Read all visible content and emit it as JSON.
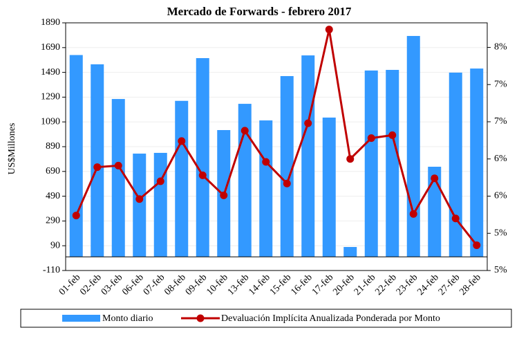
{
  "chart_data": {
    "type": "bar_line",
    "title": "Mercado de Forwards - febrero 2017",
    "y_label": "US$Millones",
    "categories": [
      "01-feb",
      "02-feb",
      "03-feb",
      "06-feb",
      "07-feb",
      "08-feb",
      "09-feb",
      "10-feb",
      "13-feb",
      "14-feb",
      "15-feb",
      "16-feb",
      "17-feb",
      "20-feb",
      "21-feb",
      "22-feb",
      "23-feb",
      "24-feb",
      "27-feb",
      "28-feb"
    ],
    "series": [
      {
        "name": "Monto diario",
        "type": "bar",
        "color": "#3399ff",
        "values": [
          1630,
          1555,
          1275,
          834,
          840,
          1260,
          1605,
          1024,
          1236,
          1102,
          1460,
          1627,
          1125,
          80,
          1505,
          1510,
          1784,
          728,
          1488,
          1521
        ]
      },
      {
        "name": "Devaluación Implícita Anualizada Ponderada por Monto",
        "type": "line",
        "axis": "y2",
        "color": "#c00000",
        "values": [
          5.24,
          5.89,
          5.91,
          5.46,
          5.7,
          6.24,
          5.78,
          5.51,
          6.38,
          5.96,
          5.67,
          6.48,
          7.74,
          6.0,
          6.28,
          6.32,
          5.26,
          5.74,
          5.2,
          4.84
        ]
      }
    ],
    "ylim": [
      -110,
      1890
    ],
    "yticks": [
      -110,
      90,
      290,
      490,
      690,
      890,
      1090,
      1290,
      1490,
      1690,
      1890
    ],
    "y2lim": [
      4.5,
      7.83
    ],
    "y2ticks": [
      {
        "value": 4.5,
        "label": "5%"
      },
      {
        "value": 5.0,
        "label": "5%"
      },
      {
        "value": 5.5,
        "label": "6%"
      },
      {
        "value": 6.0,
        "label": "6%"
      },
      {
        "value": 6.5,
        "label": "7%"
      },
      {
        "value": 7.0,
        "label": "7%"
      },
      {
        "value": 7.5,
        "label": "8%"
      }
    ],
    "grid": true,
    "legend": "bottom"
  }
}
